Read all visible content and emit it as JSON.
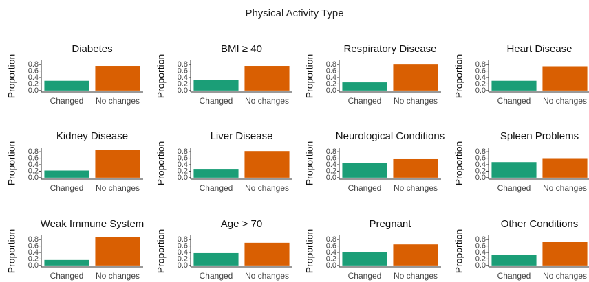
{
  "title": "Physical Activity Type",
  "chart_data": [
    {
      "type": "bar",
      "title": "Diabetes",
      "ylabel": "Proportion",
      "categories": [
        "Changed",
        "No changes"
      ],
      "values": [
        0.3,
        0.76
      ],
      "colors": [
        "#1b9e77",
        "#d95f02"
      ],
      "ylim": [
        -0.045,
        0.93
      ],
      "yticks": [
        {
          "value": 0,
          "label": "0.0"
        },
        0.2,
        0.4,
        0.6,
        0.8
      ]
    },
    {
      "type": "bar",
      "title": "BMI ≥ 40",
      "ylabel": "Proportion",
      "categories": [
        "Changed",
        "No changes"
      ],
      "values": [
        0.32,
        0.76
      ],
      "colors": [
        "#1b9e77",
        "#d95f02"
      ],
      "ylim": [
        -0.045,
        0.93
      ],
      "yticks": [
        {
          "value": 0,
          "label": "0.0"
        },
        0.2,
        0.4,
        0.6,
        0.8
      ]
    },
    {
      "type": "bar",
      "title": "Respiratory Disease",
      "ylabel": "Proportion",
      "categories": [
        "Changed",
        "No changes"
      ],
      "values": [
        0.25,
        0.8
      ],
      "colors": [
        "#1b9e77",
        "#d95f02"
      ],
      "ylim": [
        -0.045,
        0.93
      ],
      "yticks": [
        {
          "value": 0,
          "label": "0.0"
        },
        0.2,
        0.4,
        0.6,
        0.8
      ]
    },
    {
      "type": "bar",
      "title": "Heart Disease",
      "ylabel": "Proportion",
      "categories": [
        "Changed",
        "No changes"
      ],
      "values": [
        0.3,
        0.75
      ],
      "colors": [
        "#1b9e77",
        "#d95f02"
      ],
      "ylim": [
        -0.045,
        0.93
      ],
      "yticks": [
        {
          "value": 0,
          "label": "0.0"
        },
        0.2,
        0.4,
        0.6,
        0.8
      ]
    },
    {
      "type": "bar",
      "title": "Kidney Disease",
      "ylabel": "Proportion",
      "categories": [
        "Changed",
        "No changes"
      ],
      "values": [
        0.22,
        0.85
      ],
      "colors": [
        "#1b9e77",
        "#d95f02"
      ],
      "ylim": [
        -0.045,
        0.93
      ],
      "yticks": [
        {
          "value": 0,
          "label": "0.0"
        },
        0.2,
        0.4,
        0.6,
        0.8
      ]
    },
    {
      "type": "bar",
      "title": "Liver Disease",
      "ylabel": "Proportion",
      "categories": [
        "Changed",
        "No changes"
      ],
      "values": [
        0.25,
        0.82
      ],
      "colors": [
        "#1b9e77",
        "#d95f02"
      ],
      "ylim": [
        -0.045,
        0.93
      ],
      "yticks": [
        {
          "value": 0,
          "label": "0.0"
        },
        0.2,
        0.4,
        0.6,
        0.8
      ]
    },
    {
      "type": "bar",
      "title": "Neurological Conditions",
      "ylabel": "Proportion",
      "categories": [
        "Changed",
        "No changes"
      ],
      "values": [
        0.45,
        0.57
      ],
      "colors": [
        "#1b9e77",
        "#d95f02"
      ],
      "ylim": [
        -0.045,
        0.93
      ],
      "yticks": [
        {
          "value": 0,
          "label": "0.0"
        },
        0.2,
        0.4,
        0.6,
        0.8
      ]
    },
    {
      "type": "bar",
      "title": "Spleen Problems",
      "ylabel": "Proportion",
      "categories": [
        "Changed",
        "No changes"
      ],
      "values": [
        0.48,
        0.58
      ],
      "colors": [
        "#1b9e77",
        "#d95f02"
      ],
      "ylim": [
        -0.045,
        0.93
      ],
      "yticks": [
        {
          "value": 0,
          "label": "0.0"
        },
        0.2,
        0.4,
        0.6,
        0.8
      ]
    },
    {
      "type": "bar",
      "title": "Weak Immune System",
      "ylabel": "Proportion",
      "categories": [
        "Changed",
        "No changes"
      ],
      "values": [
        0.17,
        0.88
      ],
      "colors": [
        "#1b9e77",
        "#d95f02"
      ],
      "ylim": [
        -0.045,
        0.93
      ],
      "yticks": [
        {
          "value": 0,
          "label": "0.0"
        },
        0.2,
        0.4,
        0.6,
        0.8
      ]
    },
    {
      "type": "bar",
      "title": "Age > 70",
      "ylabel": "Proportion",
      "categories": [
        "Changed",
        "No changes"
      ],
      "values": [
        0.38,
        0.7
      ],
      "colors": [
        "#1b9e77",
        "#d95f02"
      ],
      "ylim": [
        -0.045,
        0.93
      ],
      "yticks": [
        {
          "value": 0,
          "label": "0.0"
        },
        0.2,
        0.4,
        0.6,
        0.8
      ]
    },
    {
      "type": "bar",
      "title": "Pregnant",
      "ylabel": "Proportion",
      "categories": [
        "Changed",
        "No changes"
      ],
      "values": [
        0.4,
        0.65
      ],
      "colors": [
        "#1b9e77",
        "#d95f02"
      ],
      "ylim": [
        -0.045,
        0.93
      ],
      "yticks": [
        {
          "value": 0,
          "label": "0.0"
        },
        0.2,
        0.4,
        0.6,
        0.8
      ]
    },
    {
      "type": "bar",
      "title": "Other Conditions",
      "ylabel": "Proportion",
      "categories": [
        "Changed",
        "No changes"
      ],
      "values": [
        0.33,
        0.72
      ],
      "colors": [
        "#1b9e77",
        "#d95f02"
      ],
      "ylim": [
        -0.045,
        0.93
      ],
      "yticks": [
        {
          "value": 0,
          "label": "0.0"
        },
        0.2,
        0.4,
        0.6,
        0.8
      ]
    }
  ]
}
